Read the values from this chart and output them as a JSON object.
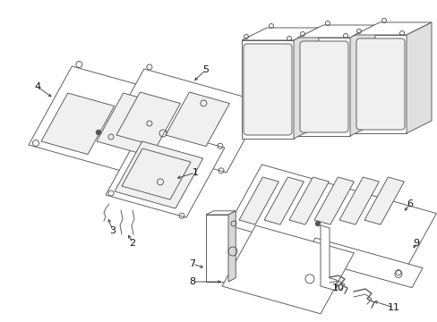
{
  "bg_color": "#ffffff",
  "line_color": "#555555",
  "lw": 0.65
}
